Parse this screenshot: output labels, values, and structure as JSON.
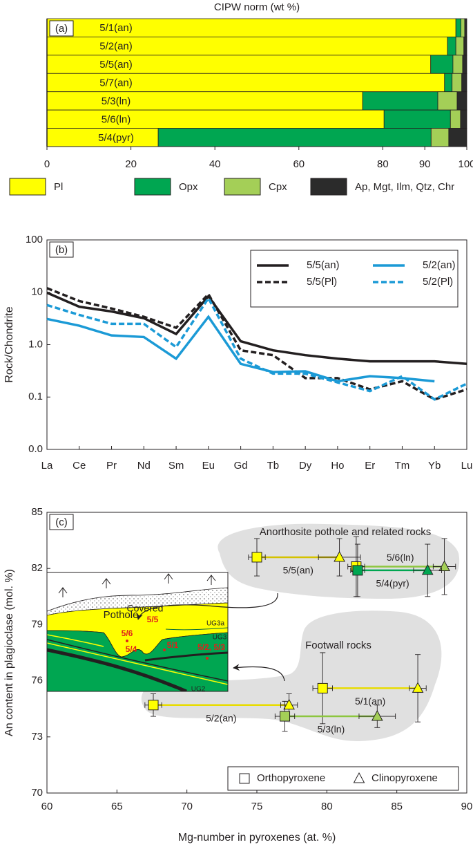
{
  "chart_data": [
    {
      "type": "bar",
      "panel_label": "(a)",
      "title": "CIPW norm (wt %)",
      "orientation": "horizontal",
      "stacked": true,
      "categories": [
        "5/1(an)",
        "5/2(an)",
        "5/5(an)",
        "5/7(an)",
        "5/3(ln)",
        "5/6(ln)",
        "5/4(pyr)"
      ],
      "series": [
        {
          "name": "Pl",
          "color": "#ffff00",
          "values": [
            97.4,
            95.4,
            91.4,
            94.7,
            75.2,
            80.3,
            26.5
          ]
        },
        {
          "name": "Opx",
          "color": "#00a651",
          "values": [
            1.2,
            2.0,
            5.3,
            1.8,
            17.9,
            15.8,
            65.0
          ]
        },
        {
          "name": "Cpx",
          "color": "#a4cf57",
          "values": [
            0.9,
            1.9,
            2.3,
            2.3,
            4.6,
            2.4,
            4.2
          ]
        },
        {
          "name": "Ap, Mgt, Ilm, Qtz, Chr",
          "color": "#2b2b2b",
          "values": [
            0.5,
            0.7,
            1.0,
            1.2,
            2.3,
            1.5,
            4.3
          ]
        }
      ],
      "xlim": [
        0,
        100
      ],
      "xticks": [
        0,
        20,
        40,
        60,
        80,
        90,
        100
      ],
      "legend": "bottom"
    },
    {
      "type": "line",
      "panel_label": "(b)",
      "y_label": "Rock/Chondrite",
      "log_scale_y": true,
      "categories": [
        "La",
        "Ce",
        "Pr",
        "Nd",
        "Sm",
        "Eu",
        "Gd",
        "Tb",
        "Dy",
        "Ho",
        "Er",
        "Tm",
        "Yb",
        "Lu"
      ],
      "series": [
        {
          "name": "5/5(an)",
          "color": "#231f20",
          "dashed": false,
          "values": [
            9.8,
            5.3,
            4.3,
            3.2,
            1.6,
            8.4,
            1.16,
            0.78,
            0.63,
            0.54,
            0.48,
            0.48,
            0.48,
            0.43
          ]
        },
        {
          "name": "5/5(Pl)",
          "color": "#231f20",
          "dashed": true,
          "values": [
            12,
            6.8,
            4.9,
            3.4,
            2.1,
            9.2,
            0.78,
            0.63,
            0.23,
            0.23,
            0.14,
            0.2,
            0.09,
            0.14
          ]
        },
        {
          "name": "5/2(an)",
          "color": "#1b9ad6",
          "dashed": false,
          "values": [
            3.1,
            2.3,
            1.5,
            1.4,
            0.54,
            3.4,
            0.43,
            0.3,
            0.31,
            0.2,
            0.25,
            0.23,
            0.2,
            null
          ]
        },
        {
          "name": "5/2(Pl)",
          "color": "#1b9ad6",
          "dashed": true,
          "values": [
            5.7,
            3.7,
            2.5,
            2.5,
            0.9,
            7.7,
            0.54,
            0.28,
            0.28,
            0.19,
            0.13,
            0.25,
            0.09,
            0.18
          ]
        }
      ],
      "ylim": [
        0.01,
        100
      ],
      "yticks": [
        {
          "value": 0.01,
          "label": "0.0"
        },
        0.1,
        {
          "value": 1,
          "label": "1.0"
        },
        10,
        100
      ],
      "legend": "upper right"
    },
    {
      "type": "scatter",
      "panel_label": "(c)",
      "x_label": "Mg-number in pyroxenes (at. %)",
      "y_label": "An content in plagioclase (mol. %)",
      "xlim": [
        60,
        90
      ],
      "xticks": [
        60,
        65,
        70,
        75,
        80,
        85,
        90
      ],
      "ylim": [
        70,
        85
      ],
      "yticks": [
        70,
        73,
        76,
        79,
        82,
        85
      ],
      "markers": [
        {
          "name": "Orthopyroxene",
          "shape": "square"
        },
        {
          "name": "Clinopyroxene",
          "shape": "triangle"
        }
      ],
      "series": [
        {
          "name": "5/5(an)",
          "color": "#d4c200",
          "colors": [
            "#ffff00",
            "#ffff00"
          ],
          "x": [
            75.0,
            80.9
          ],
          "values": [
            82.6,
            82.6
          ],
          "xerr": [
            0.6,
            1.5
          ],
          "yerr": [
            1.0,
            1.0
          ]
        },
        {
          "name": "5/6(ln)",
          "color": "#8dc63f",
          "colors": [
            "#ffff00",
            "#a4cf57"
          ],
          "x": [
            82.1,
            88.4
          ],
          "values": [
            82.1,
            82.1
          ],
          "xerr": [
            0.6,
            0.8
          ],
          "yerr": [
            1.6,
            1.5
          ]
        },
        {
          "name": "5/4(pyr)",
          "color": "#00a651",
          "colors": [
            "#00a651",
            "#00a651"
          ],
          "x": [
            82.2,
            87.2
          ],
          "values": [
            81.9,
            81.9
          ],
          "xerr": [
            0.5,
            1.0
          ],
          "yerr": [
            1.4,
            1.4
          ]
        },
        {
          "name": "5/1(an)",
          "color": "#e8dc00",
          "colors": [
            "#ffff00",
            "#ffff00"
          ],
          "x": [
            79.7,
            86.5
          ],
          "values": [
            75.6,
            75.6
          ],
          "xerr": [
            0.7,
            0.6
          ],
          "yerr": [
            1.9,
            1.8
          ]
        },
        {
          "name": "5/2(an)",
          "color": "#e8dc00",
          "colors": [
            "#ffff00",
            "#ffff00"
          ],
          "x": [
            67.6,
            77.3
          ],
          "values": [
            74.7,
            74.7
          ],
          "xerr": [
            0.6,
            0.6
          ],
          "yerr": [
            0.6,
            0.6
          ]
        },
        {
          "name": "5/3(ln)",
          "color": "#8dc63f",
          "colors": [
            "#a4cf57",
            "#a4cf57"
          ],
          "x": [
            77.0,
            83.6
          ],
          "values": [
            74.1,
            74.1
          ],
          "xerr": [
            0.7,
            1.3
          ],
          "yerr": [
            0.8,
            0.6
          ]
        }
      ],
      "annotations": [
        "Anorthosite pothole and related rocks",
        "Footwall rocks"
      ],
      "inset_labels": [
        "Covered",
        "Pothole",
        "5/6",
        "5/4",
        "5/5",
        "5/1",
        "5/2, 5/3",
        "UG3a",
        "UG3",
        "UG2"
      ],
      "legend": "lower right"
    }
  ]
}
